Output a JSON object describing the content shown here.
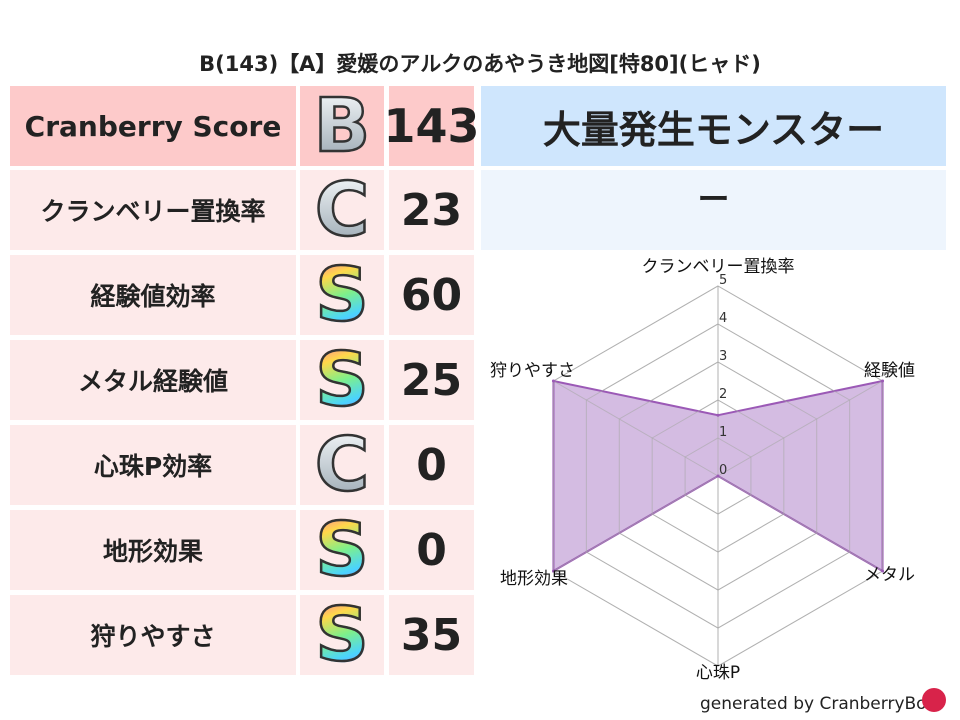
{
  "title": "B(143)【A】愛媛のアルクのあやうき地図[特80](ヒャド)",
  "header": {
    "label": "Cranberry Score",
    "grade": "B",
    "score": "143"
  },
  "rows": [
    {
      "label": "クランベリー置換率",
      "grade": "C",
      "score": "23"
    },
    {
      "label": "経験値効率",
      "grade": "S",
      "score": "60"
    },
    {
      "label": "メタル経験値",
      "grade": "S",
      "score": "25"
    },
    {
      "label": "心珠P効率",
      "grade": "C",
      "score": "0"
    },
    {
      "label": "地形効果",
      "grade": "S",
      "score": "0"
    },
    {
      "label": "狩りやすさ",
      "grade": "S",
      "score": "35"
    }
  ],
  "monster": {
    "header": "大量発生モンスター",
    "value": "ー"
  },
  "chart_data": {
    "type": "radar",
    "categories": [
      "クランベリー置換率",
      "経験値",
      "メタル",
      "心珠P",
      "地形効果",
      "狩りやすさ"
    ],
    "values": [
      1.6,
      5,
      5,
      0,
      5,
      5
    ],
    "rlim": [
      0,
      5
    ],
    "ticks": [
      "0",
      "1",
      "2",
      "3",
      "4",
      "5"
    ],
    "grid": true,
    "color": "#9b59b6",
    "fill": "#d2b8e0"
  },
  "footer": "generated by CranberryBot",
  "colors": {
    "header_bg": "#fdcaca",
    "row_bg": "#fdeaea",
    "monster_header_bg": "#cfe6fd",
    "monster_value_bg": "#eef5fd"
  }
}
